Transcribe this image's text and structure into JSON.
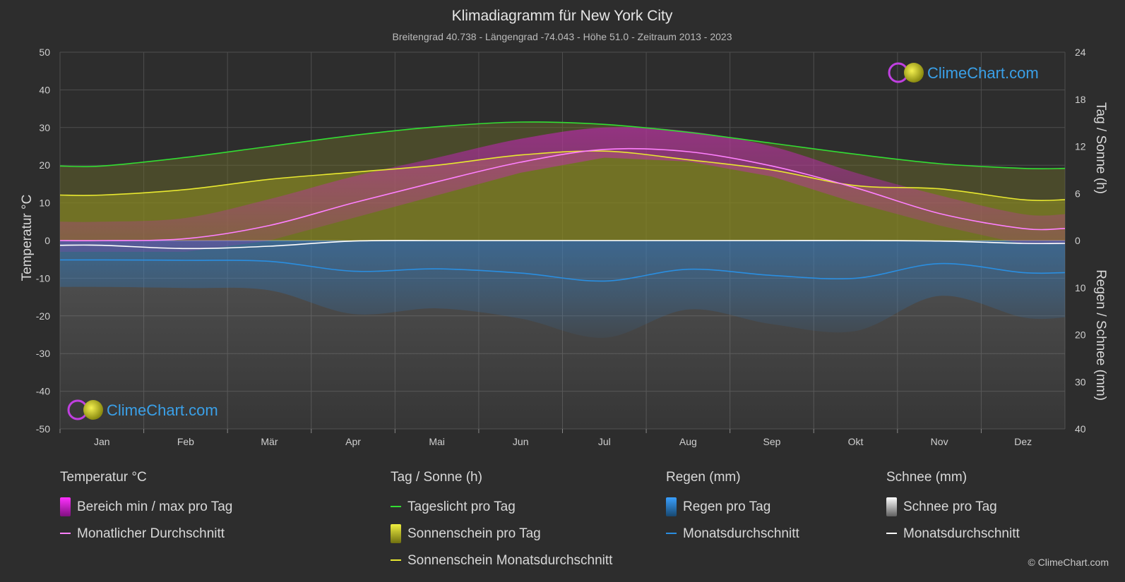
{
  "header": {
    "title": "Klimadiagramm für New York City",
    "subtitle": "Breitengrad 40.738 - Längengrad -74.043 - Höhe 51.0 - Zeitraum 2013 - 2023"
  },
  "logo": {
    "text": "ClimeChart.com"
  },
  "copyright": "© ClimeChart.com",
  "colors": {
    "background": "#2d2d2d",
    "grid": "#555555",
    "temp_range": "#d020c8",
    "temp_avg": "#ff80ff",
    "daylight": "#33dd33",
    "sunshine_fill": "#a0a020",
    "sunshine_avg": "#e8e830",
    "rain": "#2a78c0",
    "rain_avg": "#2a8ee0",
    "snow": "#888888",
    "snow_avg": "#ffffff",
    "logo_blue": "#3aa0e8"
  },
  "chart_data": {
    "type": "line",
    "categories": [
      "Jan",
      "Feb",
      "Mär",
      "Apr",
      "Mai",
      "Jun",
      "Jul",
      "Aug",
      "Sep",
      "Okt",
      "Nov",
      "Dez"
    ],
    "y_left": {
      "label": "Temperatur °C",
      "range": [
        -50,
        50
      ],
      "ticks": [
        "50",
        "40",
        "30",
        "20",
        "10",
        "0",
        "-10",
        "-20",
        "-30",
        "-40",
        "-50"
      ]
    },
    "y_right_top": {
      "label": "Tag / Sonne (h)",
      "range": [
        0,
        24
      ],
      "ticks": [
        "24",
        "18",
        "12",
        "6",
        "0"
      ]
    },
    "y_right_bottom": {
      "label": "Regen / Schnee (mm)",
      "range": [
        0,
        40
      ],
      "ticks": [
        "0",
        "10",
        "20",
        "30",
        "40"
      ]
    },
    "grid": true,
    "series": [
      {
        "name": "Tageslicht pro Tag",
        "axis": "hours",
        "values": [
          9.5,
          10.6,
          12.0,
          13.4,
          14.5,
          15.1,
          14.8,
          13.8,
          12.4,
          11.0,
          9.8,
          9.2
        ]
      },
      {
        "name": "Sonnenschein Monatsdurchschnitt",
        "axis": "hours",
        "values": [
          5.8,
          6.5,
          7.8,
          8.7,
          9.6,
          10.9,
          11.4,
          10.3,
          9.0,
          7.0,
          6.6,
          5.2
        ]
      },
      {
        "name": "Monatlicher Durchschnitt",
        "axis": "temp",
        "values": [
          0.0,
          0.5,
          4.0,
          10.0,
          15.6,
          20.8,
          24.2,
          23.6,
          19.8,
          14.0,
          7.2,
          3.2
        ]
      },
      {
        "name": "Regen Monatsdurchschnitt",
        "axis": "precip",
        "values": [
          4.1,
          4.2,
          4.4,
          6.5,
          6.0,
          6.9,
          8.6,
          6.1,
          7.4,
          8.0,
          4.9,
          6.8
        ]
      },
      {
        "name": "Schnee Monatsdurchschnitt",
        "axis": "precip",
        "values": [
          1.0,
          1.7,
          1.2,
          0.1,
          0.0,
          0.0,
          0.0,
          0.0,
          0.0,
          0.0,
          0.1,
          0.6
        ]
      }
    ],
    "temp_range_daily": {
      "min": [
        -3,
        -3,
        0,
        6,
        12,
        18,
        22,
        21,
        17,
        10,
        4,
        -1
      ],
      "max": [
        5,
        6,
        11,
        17,
        22,
        27,
        30,
        29,
        25,
        18,
        12,
        7
      ]
    }
  },
  "legend": {
    "groups": [
      {
        "title": "Temperatur °C",
        "items": [
          {
            "label": "Bereich min / max pro Tag",
            "kind": "swatch",
            "color": "#e020e0"
          },
          {
            "label": "Monatlicher Durchschnitt",
            "kind": "line",
            "color": "#ff80ff"
          }
        ]
      },
      {
        "title": "Tag / Sonne (h)",
        "items": [
          {
            "label": "Tageslicht pro Tag",
            "kind": "line",
            "color": "#33dd33"
          },
          {
            "label": "Sonnenschein pro Tag",
            "kind": "swatch",
            "color": "#c8c830"
          },
          {
            "label": "Sonnenschein Monatsdurchschnitt",
            "kind": "line",
            "color": "#e8e830"
          }
        ]
      },
      {
        "title": "Regen (mm)",
        "items": [
          {
            "label": "Regen pro Tag",
            "kind": "swatch",
            "color": "#2a8ee0"
          },
          {
            "label": "Monatsdurchschnitt",
            "kind": "line",
            "color": "#2a8ee0"
          }
        ]
      },
      {
        "title": "Schnee (mm)",
        "items": [
          {
            "label": "Schnee pro Tag",
            "kind": "swatch",
            "color": "#cccccc"
          },
          {
            "label": "Monatsdurchschnitt",
            "kind": "line",
            "color": "#ffffff"
          }
        ]
      }
    ]
  }
}
